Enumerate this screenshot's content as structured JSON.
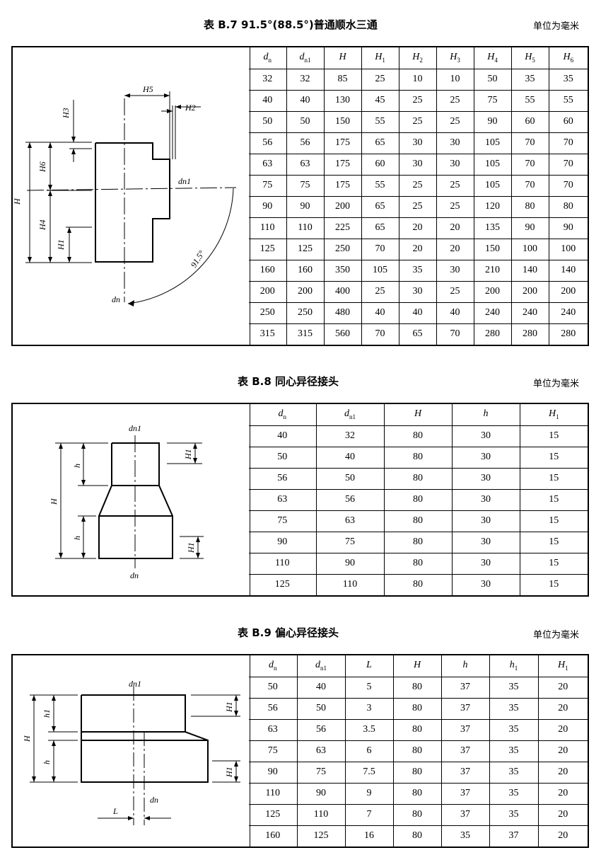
{
  "b7": {
    "title": "表 B.7   91.5°(88.5°)普通顺水三通",
    "unit": "单位为毫米",
    "fig": {
      "H": "H",
      "H1": "H1",
      "H2": "H2",
      "H3": "H3",
      "H4": "H4",
      "H5": "H5",
      "H6": "H6",
      "dn1": "dn1",
      "dn": "dn",
      "angle": "91.5°"
    },
    "headers": [
      [
        "d",
        "n"
      ],
      [
        "d",
        "n1"
      ],
      [
        "H",
        ""
      ],
      [
        "H",
        "1"
      ],
      [
        "H",
        "2"
      ],
      [
        "H",
        "3"
      ],
      [
        "H",
        "4"
      ],
      [
        "H",
        "5"
      ],
      [
        "H",
        "6"
      ]
    ],
    "rows": [
      [
        "32",
        "32",
        "85",
        "25",
        "10",
        "10",
        "50",
        "35",
        "35"
      ],
      [
        "40",
        "40",
        "130",
        "45",
        "25",
        "25",
        "75",
        "55",
        "55"
      ],
      [
        "50",
        "50",
        "150",
        "55",
        "25",
        "25",
        "90",
        "60",
        "60"
      ],
      [
        "56",
        "56",
        "175",
        "65",
        "30",
        "30",
        "105",
        "70",
        "70"
      ],
      [
        "63",
        "63",
        "175",
        "60",
        "30",
        "30",
        "105",
        "70",
        "70"
      ],
      [
        "75",
        "75",
        "175",
        "55",
        "25",
        "25",
        "105",
        "70",
        "70"
      ],
      [
        "90",
        "90",
        "200",
        "65",
        "25",
        "25",
        "120",
        "80",
        "80"
      ],
      [
        "110",
        "110",
        "225",
        "65",
        "20",
        "20",
        "135",
        "90",
        "90"
      ],
      [
        "125",
        "125",
        "250",
        "70",
        "20",
        "20",
        "150",
        "100",
        "100"
      ],
      [
        "160",
        "160",
        "350",
        "105",
        "35",
        "30",
        "210",
        "140",
        "140"
      ],
      [
        "200",
        "200",
        "400",
        "25",
        "30",
        "25",
        "200",
        "200",
        "200"
      ],
      [
        "250",
        "250",
        "480",
        "40",
        "40",
        "40",
        "240",
        "240",
        "240"
      ],
      [
        "315",
        "315",
        "560",
        "70",
        "65",
        "70",
        "280",
        "280",
        "280"
      ]
    ]
  },
  "b8": {
    "title": "表 B.8   同心异径接头",
    "unit": "单位为毫米",
    "fig": {
      "H": "H",
      "h": "h",
      "H1": "H1",
      "dn1": "dn1",
      "dn": "dn"
    },
    "headers": [
      [
        "d",
        "n"
      ],
      [
        "d",
        "n1"
      ],
      [
        "H",
        ""
      ],
      [
        "h",
        ""
      ],
      [
        "H",
        "1"
      ]
    ],
    "rows": [
      [
        "40",
        "32",
        "80",
        "30",
        "15"
      ],
      [
        "50",
        "40",
        "80",
        "30",
        "15"
      ],
      [
        "56",
        "50",
        "80",
        "30",
        "15"
      ],
      [
        "63",
        "56",
        "80",
        "30",
        "15"
      ],
      [
        "75",
        "63",
        "80",
        "30",
        "15"
      ],
      [
        "90",
        "75",
        "80",
        "30",
        "15"
      ],
      [
        "110",
        "90",
        "80",
        "30",
        "15"
      ],
      [
        "125",
        "110",
        "80",
        "30",
        "15"
      ]
    ]
  },
  "b9": {
    "title": "表 B.9   偏心异径接头",
    "unit": "单位为毫米",
    "fig": {
      "H": "H",
      "h": "h",
      "h1": "h1",
      "H1": "H1",
      "L": "L",
      "dn1": "dn1",
      "dn": "dn"
    },
    "headers": [
      [
        "d",
        "n"
      ],
      [
        "d",
        "n1"
      ],
      [
        "L",
        ""
      ],
      [
        "H",
        ""
      ],
      [
        "h",
        ""
      ],
      [
        "h",
        "1"
      ],
      [
        "H",
        "1"
      ]
    ],
    "rows": [
      [
        "50",
        "40",
        "5",
        "80",
        "37",
        "35",
        "20"
      ],
      [
        "56",
        "50",
        "3",
        "80",
        "37",
        "35",
        "20"
      ],
      [
        "63",
        "56",
        "3.5",
        "80",
        "37",
        "35",
        "20"
      ],
      [
        "75",
        "63",
        "6",
        "80",
        "37",
        "35",
        "20"
      ],
      [
        "90",
        "75",
        "7.5",
        "80",
        "37",
        "35",
        "20"
      ],
      [
        "110",
        "90",
        "9",
        "80",
        "37",
        "35",
        "20"
      ],
      [
        "125",
        "110",
        "7",
        "80",
        "37",
        "35",
        "20"
      ],
      [
        "160",
        "125",
        "16",
        "80",
        "35",
        "37",
        "20"
      ]
    ]
  }
}
